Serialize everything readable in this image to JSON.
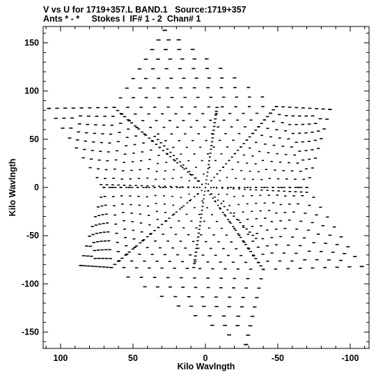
{
  "header": {
    "line1": "V vs U for 1719+357.L BAND.1   Source:1719+357",
    "line2": "Ants * - *     Stokes I  IF# 1 - 2  Chan# 1"
  },
  "chart_data": {
    "type": "scatter",
    "title": "V vs U for 1719+357.L BAND.1   Source:1719+357",
    "subtitle": "Ants * - *     Stokes I  IF# 1 - 2  Chan# 1",
    "xlabel": "Kilo Wavlngth",
    "ylabel": "Kilo Wavlngth",
    "xlim": [
      112,
      -113
    ],
    "ylim": [
      -167,
      167
    ],
    "x_ticks": [
      100,
      50,
      0,
      -50,
      -100
    ],
    "y_ticks": [
      -150,
      -100,
      -50,
      0,
      50,
      100,
      150
    ],
    "grid": false,
    "legend": "none",
    "arm_ends": [
      {
        "u": 28,
        "v": 163
      },
      {
        "u": -28,
        "v": -163
      },
      {
        "u": 108,
        "v": 82
      },
      {
        "u": -108,
        "v": -82
      },
      {
        "u": -86,
        "v": 81
      },
      {
        "u": 86,
        "v": -81
      }
    ],
    "hexagon_vertices": [
      {
        "u": 63,
        "v": 83
      },
      {
        "u": -49,
        "v": 84
      },
      {
        "u": -70,
        "v": 0
      },
      {
        "u": -40,
        "v": -85
      },
      {
        "u": 65,
        "v": -83
      },
      {
        "u": 70,
        "v": 0
      }
    ],
    "inner_spokes": [
      {
        "u": 72,
        "v": 3
      },
      {
        "u": -70,
        "v": -5
      },
      {
        "u": -8,
        "v": 83
      },
      {
        "u": 8,
        "v": -83
      },
      {
        "u": 35,
        "v": 53
      },
      {
        "u": -35,
        "v": -53
      }
    ],
    "colors": {
      "points": "#000000",
      "background": "#ffffff"
    }
  }
}
